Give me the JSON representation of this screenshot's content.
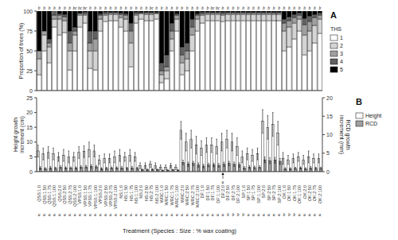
{
  "chart_data": [
    {
      "type": "bar",
      "stacked": true,
      "title": "A",
      "y_label": "Proportion of trees (%)",
      "categories": [
        "QSS:1:0",
        "QSS:1:50",
        "QSS:1:75",
        "QSS:1:100",
        "QSS:2:0",
        "QSS:2:50",
        "QSS:2:75",
        "QSS:2:100",
        "VPSS:1:0",
        "VPSS:1:50",
        "VPSS:1:75",
        "VPSS:1:100",
        "VPSS:2:0",
        "VPSS:2:50",
        "VPSS:2:75",
        "VPSS:2:100",
        "NS:1:0",
        "NS:1:50",
        "NS:1:75",
        "NS:1:100",
        "NS:2:0",
        "NS:2:50",
        "NS:2:75",
        "NS:2:100",
        "WRC:1:0",
        "WRC:1:50",
        "WRC:1:75",
        "WRC:1:100",
        "WRC:2:0",
        "WRC:2:50",
        "WRC:2:75",
        "WRC:2:100",
        "DF:1:0",
        "DF:1:50",
        "DF:1:75",
        "DF:1:100",
        "DF:2:0",
        "DF:2:50",
        "DF:2:75",
        "DF:2:100",
        "SP:1:0",
        "SP:1:50",
        "SP:1:75",
        "SP:1:100",
        "SP:2:0",
        "SP:2:50",
        "SP:2:75",
        "SP:2:100",
        "OK:1:0",
        "OK:1:50",
        "OK:1:75",
        "OK:1:100",
        "OK:2:0",
        "OK:2:50",
        "OK:2:75",
        "OK:2:100"
      ],
      "series": [
        {
          "name": "1",
          "color": "#ffffff",
          "values": [
            20,
            50,
            35,
            80,
            70,
            73,
            26,
            50,
            80,
            85,
            28,
            26,
            75,
            87,
            88,
            88,
            80,
            75,
            30,
            85,
            90,
            88,
            88,
            90,
            10,
            15,
            50,
            75,
            20,
            25,
            50,
            75,
            85,
            88,
            88,
            88,
            87,
            88,
            88,
            88,
            88,
            88,
            88,
            88,
            88,
            88,
            88,
            88,
            50,
            55,
            65,
            75,
            45,
            50,
            60,
            72
          ]
        },
        {
          "name": "2",
          "color": "#d4d4d4",
          "values": [
            20,
            20,
            20,
            10,
            20,
            15,
            24,
            20,
            15,
            10,
            22,
            24,
            15,
            8,
            8,
            8,
            12,
            15,
            30,
            10,
            7,
            8,
            8,
            7,
            10,
            10,
            15,
            15,
            15,
            15,
            20,
            15,
            10,
            8,
            8,
            8,
            8,
            8,
            8,
            8,
            8,
            8,
            8,
            8,
            8,
            8,
            8,
            8,
            25,
            25,
            20,
            15,
            25,
            25,
            22,
            18
          ]
        },
        {
          "name": "3",
          "color": "#a0a0a0",
          "values": [
            10,
            5,
            5,
            5,
            5,
            5,
            10,
            5,
            2,
            2,
            10,
            15,
            5,
            2,
            2,
            2,
            4,
            5,
            15,
            2,
            1,
            2,
            2,
            1,
            5,
            5,
            10,
            5,
            10,
            10,
            10,
            5,
            2,
            2,
            2,
            2,
            2,
            2,
            2,
            2,
            2,
            2,
            2,
            2,
            2,
            2,
            2,
            2,
            10,
            8,
            7,
            5,
            13,
            12,
            10,
            5
          ]
        },
        {
          "name": "4",
          "color": "#606060",
          "values": [
            0,
            0,
            5,
            5,
            2,
            3,
            15,
            5,
            1,
            2,
            15,
            10,
            2,
            2,
            1,
            1,
            2,
            2,
            10,
            2,
            1,
            1,
            1,
            1,
            10,
            15,
            10,
            2,
            10,
            10,
            10,
            2,
            2,
            1,
            1,
            1,
            2,
            1,
            1,
            1,
            1,
            1,
            1,
            1,
            1,
            1,
            1,
            1,
            5,
            5,
            4,
            3,
            8,
            7,
            4,
            3
          ]
        },
        {
          "name": "5",
          "color": "#000000",
          "values": [
            50,
            25,
            35,
            0,
            3,
            4,
            25,
            20,
            2,
            1,
            25,
            25,
            3,
            1,
            1,
            1,
            2,
            3,
            15,
            1,
            1,
            1,
            1,
            1,
            65,
            55,
            15,
            3,
            45,
            40,
            10,
            3,
            1,
            1,
            1,
            1,
            1,
            1,
            1,
            1,
            1,
            1,
            1,
            1,
            1,
            1,
            1,
            1,
            10,
            7,
            4,
            2,
            9,
            6,
            4,
            2
          ]
        }
      ],
      "ylim": [
        0,
        100
      ],
      "yticks": [
        0,
        25,
        50,
        75,
        100
      ],
      "tick_labels": "y",
      "legend": "right",
      "legend_title": "THS",
      "bar_letters": [
        "b",
        "b",
        "b",
        "b",
        "b",
        "b",
        "b",
        "bc",
        "bc",
        "bc",
        "b",
        "b",
        "b",
        "b",
        "b",
        "b",
        "b",
        "b",
        "b",
        "b",
        "b",
        "b",
        "bc",
        "b",
        "b",
        "b",
        "b",
        "b",
        "b",
        "b",
        "b",
        "b",
        "b",
        "b",
        "bc",
        "bc",
        "b",
        "b",
        "b",
        "b",
        "b",
        "b",
        "b",
        "b",
        "b",
        "b",
        "b",
        "b",
        "b",
        "b",
        "b",
        "b",
        "b",
        "b",
        "b",
        "b"
      ]
    },
    {
      "type": "bar",
      "title": "B",
      "x_label": "Treatment (Species : Size : % wax coating)",
      "y_label": "Height growth\nincrement (cm)",
      "y2_label": "RCD growth\nincrement (mm)",
      "categories": [
        "QSS:1:0",
        "QSS:1:50",
        "QSS:1:75",
        "QSS:1:100",
        "QSS:2:0",
        "QSS:2:50",
        "QSS:2:75",
        "QSS:2:100",
        "VPSS:1:0",
        "VPSS:1:50",
        "VPSS:1:75",
        "VPSS:1:100",
        "VPSS:2:0",
        "VPSS:2:50",
        "VPSS:2:75",
        "VPSS:2:100",
        "NS:1:0",
        "NS:1:50",
        "NS:1:75",
        "NS:1:100",
        "NS:2:0",
        "NS:2:50",
        "NS:2:75",
        "NS:2:100",
        "WRC:1:0",
        "WRC:1:50",
        "WRC:1:75",
        "WRC:1:100",
        "WRC:2:0",
        "WRC:2:50",
        "WRC:2:75",
        "WRC:2:100",
        "DF:1:0",
        "DF:1:50",
        "DF:1:75",
        "DF:1:100",
        "DF:2:0",
        "DF:2:50",
        "DF:2:75",
        "DF:2:100",
        "SP:1:0",
        "SP:1:50",
        "SP:1:75",
        "SP:1:100",
        "SP:2:0",
        "SP:2:50",
        "SP:2:75",
        "SP:2:100",
        "OK:1:0",
        "OK:1:50",
        "OK:1:75",
        "OK:1:100",
        "OK:2:0",
        "OK:2:50",
        "OK:2:75",
        "OK:2:100"
      ],
      "series": [
        {
          "name": "Height",
          "color": "#ffffff",
          "values": [
            7.0,
            6.0,
            6.5,
            6.0,
            5.0,
            5.5,
            5.0,
            5.0,
            6.5,
            6.8,
            7.5,
            7.0,
            4.0,
            4.5,
            4.5,
            5.0,
            5.5,
            5.0,
            5.5,
            5.0,
            2.0,
            2.0,
            2.5,
            2.0,
            1.5,
            1.5,
            2.0,
            1.5,
            14.0,
            10.0,
            11.0,
            9.0,
            8.0,
            9.0,
            9.0,
            8.5,
            10.0,
            11.0,
            10.0,
            8.5,
            5.0,
            6.0,
            5.5,
            6.0,
            17.0,
            15.0,
            16.0,
            13.0,
            4.5,
            4.0,
            4.5,
            5.0,
            4.0,
            5.0,
            4.5,
            4.5
          ],
          "errors": [
            2.0,
            2.0,
            2.0,
            2.0,
            1.5,
            2.0,
            2.0,
            1.5,
            2.0,
            2.0,
            2.5,
            2.0,
            1.5,
            1.5,
            1.5,
            2.0,
            2.0,
            1.5,
            2.0,
            1.5,
            1.0,
            1.0,
            1.0,
            1.0,
            0.8,
            0.8,
            0.8,
            0.8,
            3.0,
            3.0,
            3.0,
            3.0,
            2.5,
            2.5,
            2.5,
            2.5,
            3.0,
            3.0,
            3.0,
            3.0,
            2.0,
            2.0,
            2.0,
            2.0,
            4.0,
            4.0,
            4.0,
            4.0,
            2.0,
            1.5,
            1.5,
            1.5,
            1.5,
            2.0,
            1.5,
            1.5
          ]
        },
        {
          "name": "RCD",
          "color": "#a0a0a0",
          "axis": "y2",
          "values": [
            1.0,
            0.8,
            1.0,
            0.9,
            1.2,
            1.0,
            1.0,
            1.0,
            1.2,
            1.3,
            1.4,
            1.3,
            0.8,
            0.9,
            1.0,
            1.0,
            1.0,
            0.9,
            1.0,
            0.9,
            0.5,
            0.5,
            0.6,
            0.5,
            0.3,
            0.4,
            0.5,
            0.4,
            2.5,
            2.0,
            2.2,
            1.8,
            1.5,
            1.8,
            1.8,
            1.7,
            2.0,
            2.2,
            2.0,
            1.8,
            1.0,
            1.2,
            1.1,
            1.2,
            3.2,
            3.0,
            3.1,
            2.8,
            0.8,
            0.8,
            0.9,
            1.0,
            0.8,
            1.0,
            0.9,
            0.9
          ],
          "errors": [
            0.4,
            0.3,
            0.4,
            0.3,
            0.4,
            0.3,
            0.3,
            0.3,
            0.4,
            0.4,
            0.5,
            0.4,
            0.3,
            0.3,
            0.3,
            0.3,
            0.4,
            0.3,
            0.4,
            0.3,
            0.2,
            0.2,
            0.2,
            0.2,
            0.15,
            0.15,
            0.15,
            0.15,
            0.6,
            0.6,
            0.6,
            0.6,
            0.5,
            0.5,
            0.5,
            0.5,
            0.6,
            0.6,
            0.6,
            0.6,
            0.4,
            0.4,
            0.4,
            0.4,
            0.8,
            0.8,
            0.8,
            0.8,
            0.3,
            0.3,
            0.3,
            0.3,
            0.3,
            0.4,
            0.3,
            0.3
          ]
        }
      ],
      "ylim": [
        0,
        25
      ],
      "yticks": [
        0,
        5,
        10,
        15,
        20,
        25
      ],
      "y2lim": [
        0,
        20
      ],
      "y2ticks": [
        0,
        5,
        10,
        15,
        20
      ],
      "legend": "right",
      "bar_letters": [
        "a",
        "a",
        "a",
        "a",
        "a",
        "a",
        "a",
        "a",
        "a",
        "a",
        "a",
        "a",
        "a",
        "a",
        "a",
        "a",
        "a",
        "a",
        "a",
        "a",
        "a",
        "a",
        "a",
        "a",
        "a",
        "a",
        "a",
        "a",
        "a",
        "a",
        "a",
        "a",
        "a",
        "a",
        "a",
        "a",
        "a",
        "b",
        "b",
        "b",
        "b",
        "a",
        "a",
        "a",
        "a",
        "a",
        "a",
        "a",
        "b",
        "b",
        "b",
        "a",
        "a",
        "a",
        "a",
        "a"
      ],
      "annotations": [
        {
          "text": "a",
          "x": "DF:2:0",
          "y": 0
        }
      ]
    }
  ]
}
